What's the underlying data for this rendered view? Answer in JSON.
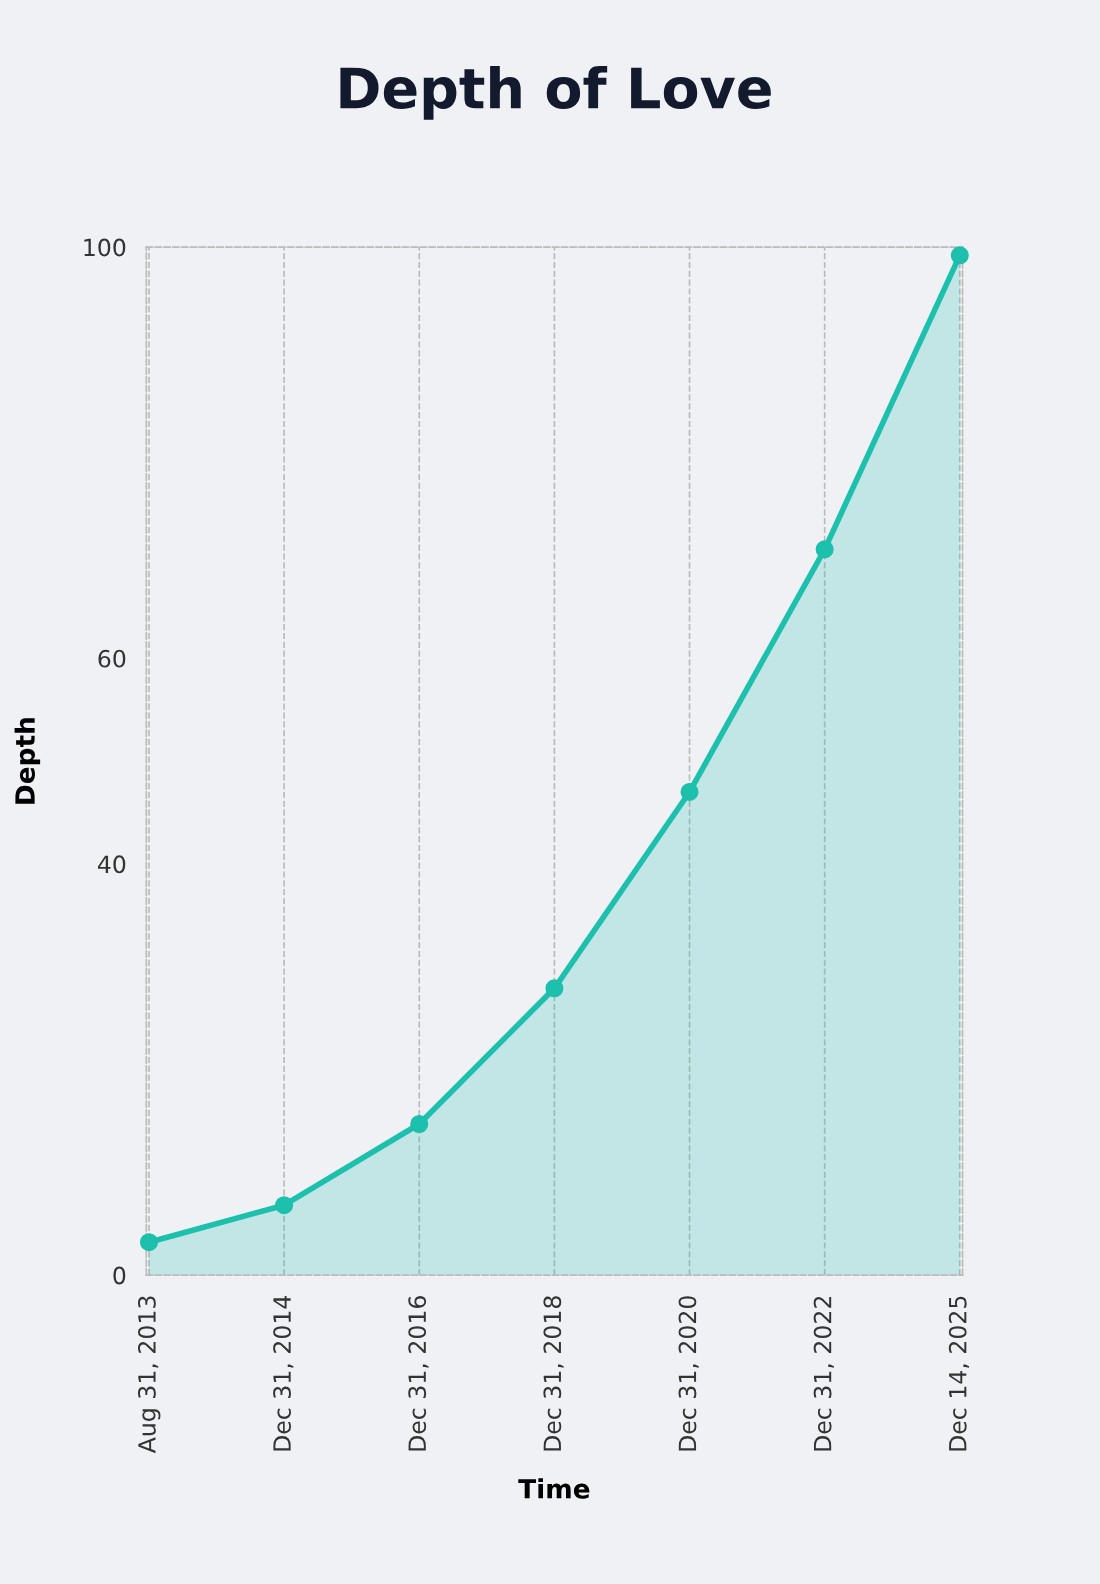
{
  "chart_data": {
    "type": "area",
    "title": "Depth of Love",
    "xlabel": "Time",
    "ylabel": "Depth",
    "categories": [
      "Aug 31, 2013",
      "Dec 31, 2014",
      "Dec 31, 2016",
      "Dec 31, 2018",
      "Dec 31, 2020",
      "Dec 31, 2022",
      "Dec 14, 2025"
    ],
    "series": [
      {
        "color": "#1dbfad",
        "values": [
          3.2,
          6.8,
          14.7,
          27.9,
          47.0,
          70.6,
          99.2
        ]
      }
    ],
    "ylim": [
      0,
      100
    ],
    "yticks": [
      0,
      40,
      60,
      100
    ],
    "grid": "x",
    "marker": "circle",
    "line_style": "solid",
    "legend": false
  }
}
